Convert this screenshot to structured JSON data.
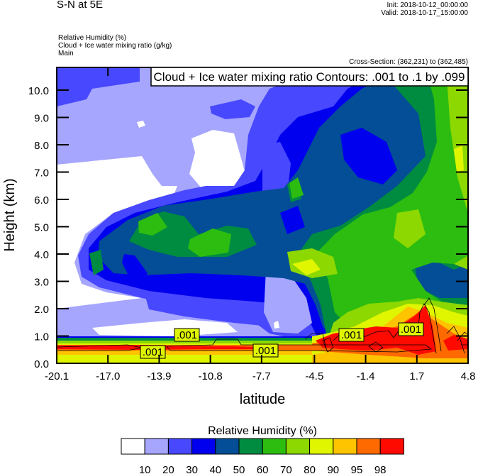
{
  "header": {
    "main_title": "S-N at 5E",
    "init": "Init: 2018-10-12_00:00:00",
    "valid": "Valid: 2018-10-17_15:00:00",
    "field_lines": [
      "Relative Humidity   (%)",
      "Cloud + Ice water mixing ratio   (g/kg)",
      "Main"
    ],
    "cross_section": "Cross-Section: (362,231) to (362,485)"
  },
  "chart_data": {
    "type": "heatmap",
    "subtype": "filled contour cross-section with line contours",
    "xlabel": "latitude",
    "ylabel": "Height (km)",
    "xlim": [
      -20.1,
      4.8
    ],
    "ylim": [
      0.0,
      10.8
    ],
    "xticks": [
      -20.1,
      -17.0,
      -13.9,
      -10.8,
      -7.7,
      -4.5,
      -1.4,
      1.7,
      4.8
    ],
    "xtick_labels": [
      "-20.1",
      "-17.0",
      "-13.9",
      "-10.8",
      "-7.7",
      "-4.5",
      "-1.4",
      "1.7",
      "4.8"
    ],
    "yticks": [
      0,
      1,
      2,
      3,
      4,
      5,
      6,
      7,
      8,
      9,
      10
    ],
    "ytick_labels": [
      "0.0",
      "1.0",
      "2.0",
      "3.0",
      "4.0",
      "5.0",
      "6.0",
      "7.0",
      "8.0",
      "9.0",
      "10.0"
    ],
    "contour_title": "Cloud + Ice water mixing ratio Contours: .001 to .1 by .099",
    "contour_labels": [
      ".001",
      ".001",
      ".001",
      ".001",
      ".001"
    ],
    "colorbar": {
      "title": "Relative Humidity  (%)",
      "levels": [
        "10",
        "20",
        "30",
        "40",
        "50",
        "60",
        "70",
        "80",
        "90",
        "95",
        "98"
      ],
      "colors": [
        "#ffffff",
        "#a6a6ff",
        "#4848ff",
        "#0000ee",
        "#034e96",
        "#008c40",
        "#2dbd10",
        "#8cd800",
        "#e0f500",
        "#ffc400",
        "#ff6a00",
        "#ff0a00"
      ]
    }
  }
}
